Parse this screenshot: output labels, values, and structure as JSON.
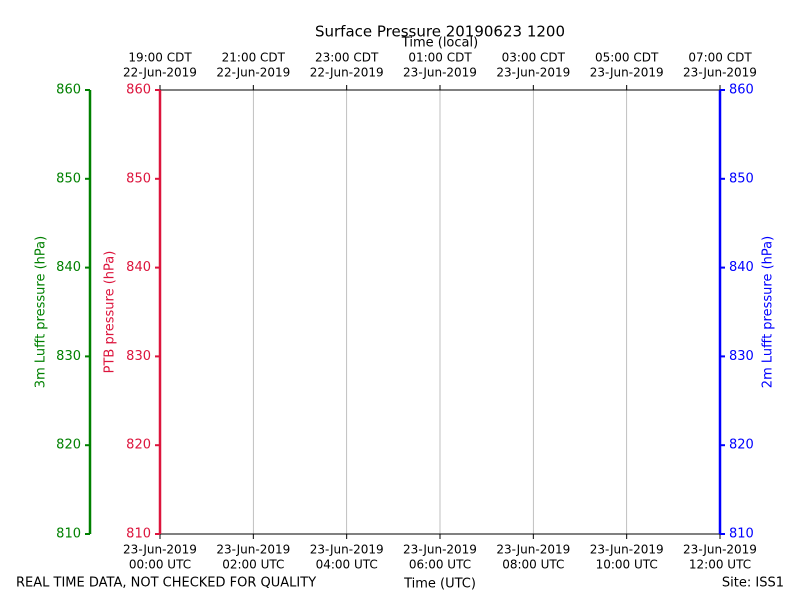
{
  "chart_data": {
    "type": "line",
    "title": "Surface Pressure 20190623 1200",
    "xlabel": "Time (UTC)",
    "x2label": "Time (local)",
    "xlim": [
      "2019-06-23T00:00Z",
      "2019-06-23T12:00Z"
    ],
    "xticks": [
      {
        "value": "2019-06-23T00:00Z",
        "label": [
          "23-Jun-2019",
          "00:00 UTC"
        ]
      },
      {
        "value": "2019-06-23T02:00Z",
        "label": [
          "23-Jun-2019",
          "02:00 UTC"
        ]
      },
      {
        "value": "2019-06-23T04:00Z",
        "label": [
          "23-Jun-2019",
          "04:00 UTC"
        ]
      },
      {
        "value": "2019-06-23T06:00Z",
        "label": [
          "23-Jun-2019",
          "06:00 UTC"
        ]
      },
      {
        "value": "2019-06-23T08:00Z",
        "label": [
          "23-Jun-2019",
          "08:00 UTC"
        ]
      },
      {
        "value": "2019-06-23T10:00Z",
        "label": [
          "23-Jun-2019",
          "10:00 UTC"
        ]
      },
      {
        "value": "2019-06-23T12:00Z",
        "label": [
          "23-Jun-2019",
          "12:00 UTC"
        ]
      }
    ],
    "x2ticks": [
      {
        "value": "2019-06-22T19:00-05:00",
        "label": [
          "19:00 CDT",
          "22-Jun-2019"
        ]
      },
      {
        "value": "2019-06-22T21:00-05:00",
        "label": [
          "21:00 CDT",
          "22-Jun-2019"
        ]
      },
      {
        "value": "2019-06-22T23:00-05:00",
        "label": [
          "23:00 CDT",
          "22-Jun-2019"
        ]
      },
      {
        "value": "2019-06-23T01:00-05:00",
        "label": [
          "01:00 CDT",
          "23-Jun-2019"
        ]
      },
      {
        "value": "2019-06-23T03:00-05:00",
        "label": [
          "03:00 CDT",
          "23-Jun-2019"
        ]
      },
      {
        "value": "2019-06-23T05:00-05:00",
        "label": [
          "05:00 CDT",
          "23-Jun-2019"
        ]
      },
      {
        "value": "2019-06-23T07:00-05:00",
        "label": [
          "07:00 CDT",
          "23-Jun-2019"
        ]
      }
    ],
    "ylabel": "PTB pressure (hPa)",
    "ycolor": "#dc143c",
    "ylim": [
      810,
      860
    ],
    "yticks": [
      810,
      820,
      830,
      840,
      850,
      860
    ],
    "y2label": "2m Lufft pressure (hPa)",
    "y2color": "#0000ff",
    "y2lim": [
      810,
      860
    ],
    "y2ticks": [
      810,
      820,
      830,
      840,
      850,
      860
    ],
    "y3label": "3m Lufft pressure (hPa)",
    "y3color": "#008000",
    "y3lim": [
      810,
      860
    ],
    "y3ticks": [
      810,
      820,
      830,
      840,
      850,
      860
    ],
    "grid": true,
    "series": [],
    "note": "REAL TIME DATA, NOT CHECKED FOR QUALITY",
    "site": "Site: ISS1"
  }
}
